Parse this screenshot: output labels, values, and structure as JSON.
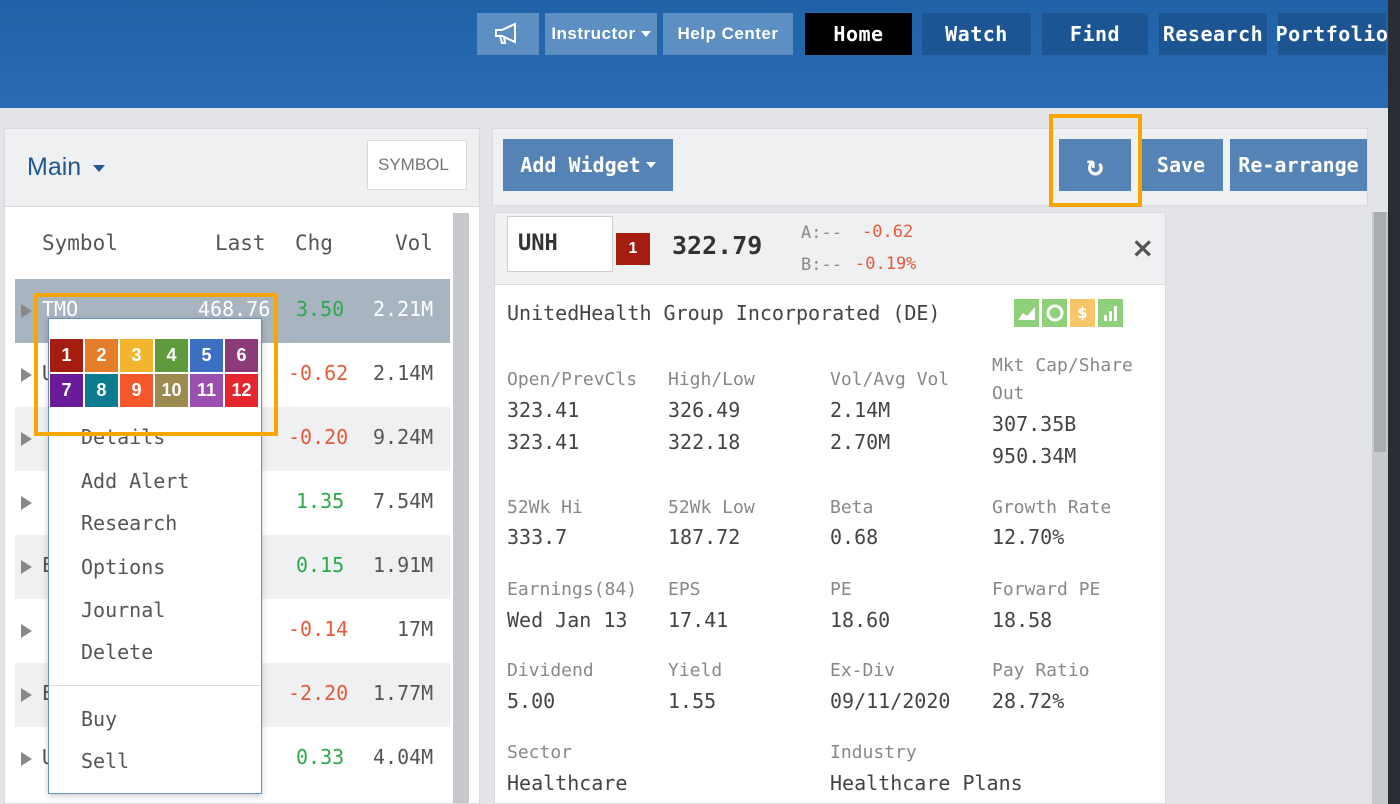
{
  "nav": {
    "instructor": "Instructor",
    "help_center": "Help Center",
    "home": "Home",
    "watch": "Watch",
    "find": "Find",
    "research": "Research",
    "portfolio": "Portfolio"
  },
  "watchlist": {
    "name": "Main",
    "symbol_placeholder": "SYMBOL",
    "columns": [
      "Symbol",
      "Last",
      "Chg",
      "Vol"
    ],
    "rows": [
      {
        "symbol": "TMO",
        "last": "468.76",
        "chg": "3.50",
        "vol": "2.21M"
      },
      {
        "symbol": "U",
        "last": "",
        "chg": "-0.62",
        "vol": "2.14M"
      },
      {
        "symbol": "",
        "last": "",
        "chg": "-0.20",
        "vol": "9.24M"
      },
      {
        "symbol": "",
        "last": "",
        "chg": "1.35",
        "vol": "7.54M"
      },
      {
        "symbol": "E",
        "last": "",
        "chg": "0.15",
        "vol": "1.91M"
      },
      {
        "symbol": "",
        "last": "",
        "chg": "-0.14",
        "vol": "17M"
      },
      {
        "symbol": "E",
        "last": "",
        "chg": "-2.20",
        "vol": "1.77M"
      },
      {
        "symbol": "U",
        "last": "",
        "chg": "0.33",
        "vol": "4.04M"
      }
    ]
  },
  "context_menu": {
    "tags": [
      "1",
      "2",
      "3",
      "4",
      "5",
      "6",
      "7",
      "8",
      "9",
      "10",
      "11",
      "12"
    ],
    "tag_colors": [
      "#a51d10",
      "#e57e2a",
      "#f2b52d",
      "#5f9a3c",
      "#3a6fc2",
      "#8c3b79",
      "#6a1b9a",
      "#0c7b8f",
      "#f4582b",
      "#9c8a4e",
      "#9b4fae",
      "#e6262f"
    ],
    "items": [
      "Details",
      "Add Alert",
      "Research",
      "Options",
      "Journal",
      "Delete",
      "Buy",
      "Sell"
    ]
  },
  "toolbar": {
    "add_widget": "Add Widget",
    "refresh_icon": "↻",
    "save": "Save",
    "rearrange": "Re-arrange"
  },
  "quote": {
    "symbol": "UNH",
    "tag": "1",
    "price": "322.79",
    "ask": "A:--",
    "bid": "B:--",
    "change": "-0.62",
    "change_pct": "-0.19%",
    "close": "×",
    "company": "UnitedHealth Group Incorporated (DE)",
    "icons": [
      "chart-icon",
      "circle-icon",
      "dollar-icon",
      "bars-icon"
    ],
    "icon_glyphs": {
      "dollar": "$"
    },
    "fields": {
      "open_prevcls": {
        "label": "Open/PrevCls",
        "v1": "323.41",
        "v2": "323.41"
      },
      "high_low": {
        "label": "High/Low",
        "v1": "326.49",
        "v2": "322.18"
      },
      "vol_avg": {
        "label": "Vol/Avg Vol",
        "v1": "2.14M",
        "v2": "2.70M"
      },
      "mktcap": {
        "label1": "Mkt Cap/Share",
        "label2": "Out",
        "v1": "307.35B",
        "v2": "950.34M"
      },
      "hi52": {
        "label": "52Wk Hi",
        "v": "333.7"
      },
      "low52": {
        "label": "52Wk Low",
        "v": "187.72"
      },
      "beta": {
        "label": "Beta",
        "v": "0.68"
      },
      "growth": {
        "label": "Growth Rate",
        "v": "12.70%"
      },
      "earnings": {
        "label": "Earnings(84)",
        "v": "Wed Jan 13"
      },
      "eps": {
        "label": "EPS",
        "v": "17.41"
      },
      "pe": {
        "label": "PE",
        "v": "18.60"
      },
      "fpe": {
        "label": "Forward PE",
        "v": "18.58"
      },
      "dividend": {
        "label": "Dividend",
        "v": "5.00"
      },
      "yield": {
        "label": "Yield",
        "v": "1.55"
      },
      "exdiv": {
        "label": "Ex-Div",
        "v": "09/11/2020"
      },
      "payratio": {
        "label": "Pay Ratio",
        "v": "28.72%"
      },
      "sector": {
        "label": "Sector",
        "v": "Healthcare"
      },
      "industry": {
        "label": "Industry",
        "v": "Healthcare Plans"
      }
    }
  },
  "colors": {
    "up": "#2ea84d",
    "down": "#e45a3c",
    "highlight": "#f5a700"
  }
}
